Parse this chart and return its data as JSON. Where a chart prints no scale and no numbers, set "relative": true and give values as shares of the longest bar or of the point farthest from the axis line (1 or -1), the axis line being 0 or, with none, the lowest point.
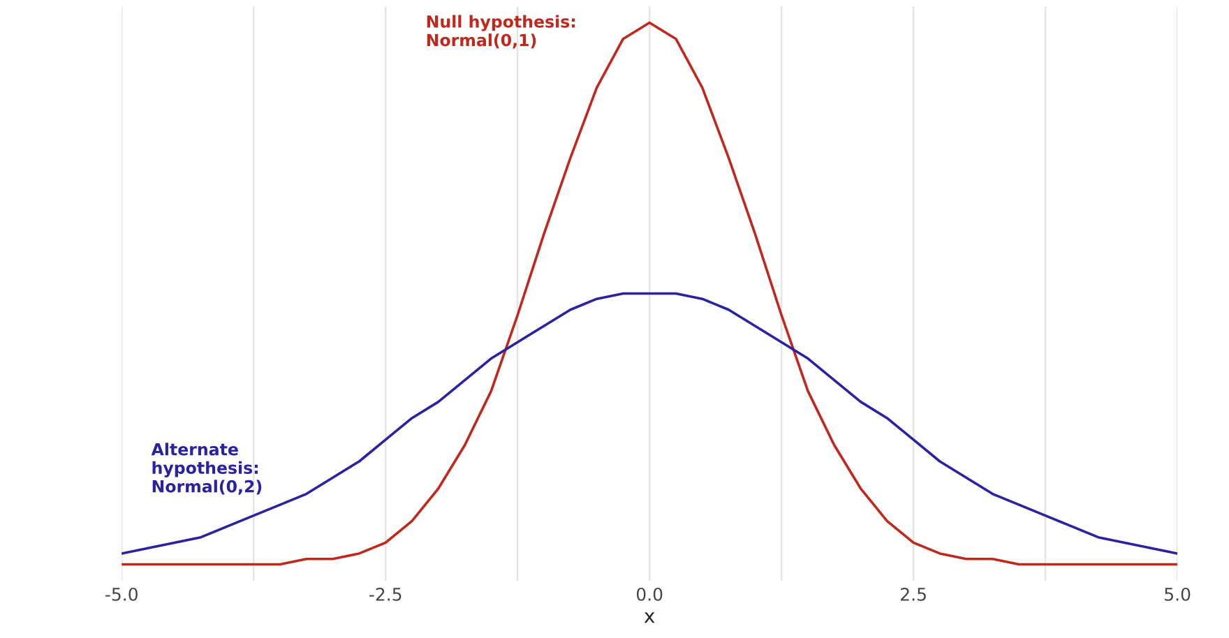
{
  "chart_data": {
    "type": "line",
    "relative": true,
    "xlabel": "x",
    "xlim": [
      -5,
      5
    ],
    "xticks": [
      {
        "value": -5,
        "label": "-5.0"
      },
      {
        "value": -3.75,
        "label": null
      },
      {
        "value": -2.5,
        "label": "-2.5"
      },
      {
        "value": -1.25,
        "label": null
      },
      {
        "value": 0,
        "label": "0.0"
      },
      {
        "value": 1.25,
        "label": null
      },
      {
        "value": 2.5,
        "label": "2.5"
      },
      {
        "value": 3.75,
        "label": null
      },
      {
        "value": 5,
        "label": "5.0"
      }
    ],
    "grid": "x",
    "legend": false,
    "marker": "none",
    "line_style": "solid",
    "x": [
      -5,
      -4.75,
      -4.5,
      -4.25,
      -4,
      -3.75,
      -3.5,
      -3.25,
      -3,
      -2.75,
      -2.5,
      -2.25,
      -2,
      -1.75,
      -1.5,
      -1.25,
      -1,
      -0.75,
      -0.5,
      -0.25,
      0,
      0.25,
      0.5,
      0.75,
      1,
      1.25,
      1.5,
      1.75,
      2,
      2.25,
      2.5,
      2.75,
      3,
      3.25,
      3.5,
      3.75,
      4,
      4.25,
      4.5,
      4.75,
      5
    ],
    "series": [
      {
        "color": "#c0281e",
        "values": [
          0,
          0,
          0,
          0,
          0,
          0,
          0,
          0.01,
          0.01,
          0.02,
          0.04,
          0.08,
          0.14,
          0.22,
          0.32,
          0.46,
          0.61,
          0.75,
          0.88,
          0.97,
          1,
          0.97,
          0.88,
          0.75,
          0.61,
          0.46,
          0.32,
          0.22,
          0.14,
          0.08,
          0.04,
          0.02,
          0.01,
          0.01,
          0,
          0,
          0,
          0,
          0,
          0,
          0
        ]
      },
      {
        "color": "#2a22a0",
        "values": [
          0.02,
          0.03,
          0.04,
          0.05,
          0.07,
          0.09,
          0.11,
          0.13,
          0.16,
          0.19,
          0.23,
          0.27,
          0.3,
          0.34,
          0.38,
          0.41,
          0.44,
          0.47,
          0.49,
          0.5,
          0.5,
          0.5,
          0.49,
          0.47,
          0.44,
          0.41,
          0.38,
          0.34,
          0.3,
          0.27,
          0.23,
          0.19,
          0.16,
          0.13,
          0.11,
          0.09,
          0.07,
          0.05,
          0.04,
          0.03,
          0.02
        ]
      }
    ],
    "annotations": [
      "Null hypothesis:\nNormal(0,1)",
      "Alternate\nhypothesis:\nNormal(0,2)"
    ]
  }
}
